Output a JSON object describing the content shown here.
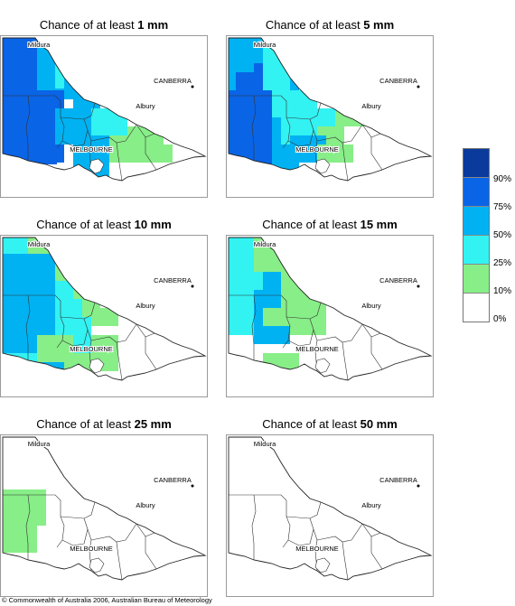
{
  "panels": [
    {
      "title_prefix": "Chance of at least ",
      "amount": "1 mm"
    },
    {
      "title_prefix": "Chance of at least ",
      "amount": "5 mm"
    },
    {
      "title_prefix": "Chance of at least ",
      "amount": "10 mm"
    },
    {
      "title_prefix": "Chance of at least ",
      "amount": "15 mm"
    },
    {
      "title_prefix": "Chance of at least ",
      "amount": "25 mm"
    },
    {
      "title_prefix": "Chance of at least ",
      "amount": "50 mm"
    }
  ],
  "places": {
    "mildura": "Mildura",
    "canberra": "CANBERRA",
    "albury": "Albury",
    "melbourne": "MELBOURNE"
  },
  "legend": {
    "colors": [
      "#0a3a9c",
      "#0a64e6",
      "#00b2f2",
      "#33f2f2",
      "#88ee88",
      "#ffffff"
    ],
    "labels": [
      "90%",
      "75%",
      "50%",
      "25%",
      "10%",
      "0%"
    ]
  },
  "copyright": "© Commonwealth of Australia 2006, Australian Bureau of Meteorology"
}
